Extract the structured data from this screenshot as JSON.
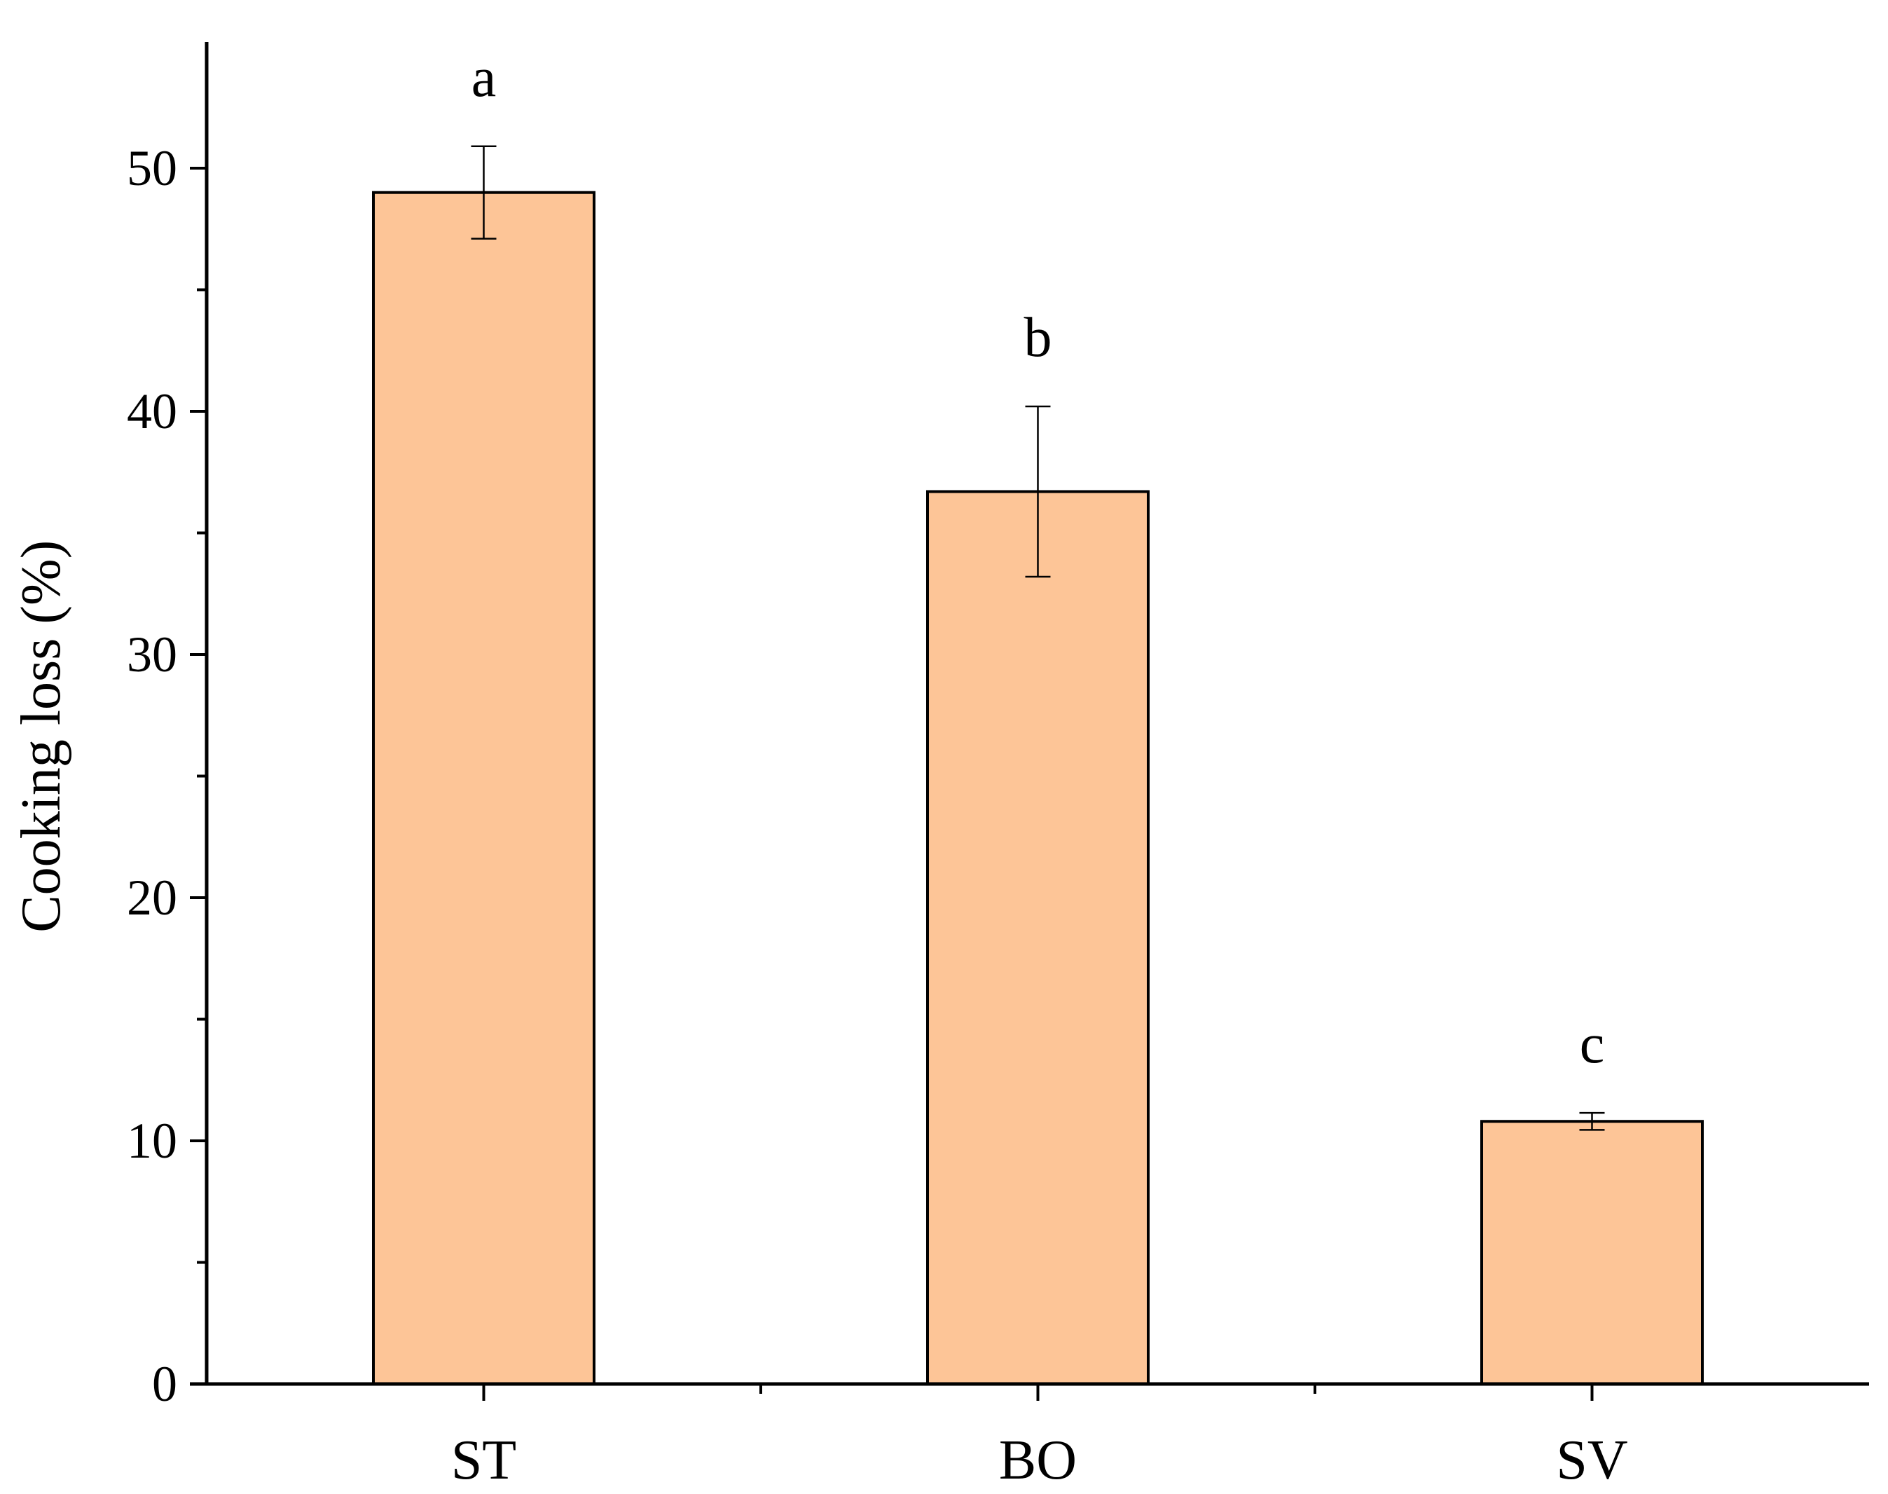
{
  "chart_data": {
    "type": "bar",
    "title": "",
    "xlabel": "",
    "ylabel": "Cooking loss (%)",
    "categories": [
      "ST",
      "BO",
      "SV"
    ],
    "values": [
      49.0,
      36.7,
      10.8
    ],
    "errors": [
      1.9,
      3.5,
      0.35
    ],
    "significance_labels": [
      "a",
      "b",
      "c"
    ],
    "ylim": [
      0,
      55
    ],
    "yticks": [
      0,
      10,
      20,
      30,
      40,
      50
    ],
    "ytick_labels": [
      "0",
      "10",
      "20",
      "30",
      "40",
      "50"
    ],
    "y_minor_step": 5,
    "grid": false,
    "legend": "none",
    "colors": {
      "bar_fill": "#FDC597",
      "bar_stroke": "#000000",
      "axis": "#000000",
      "text": "#000000"
    }
  }
}
